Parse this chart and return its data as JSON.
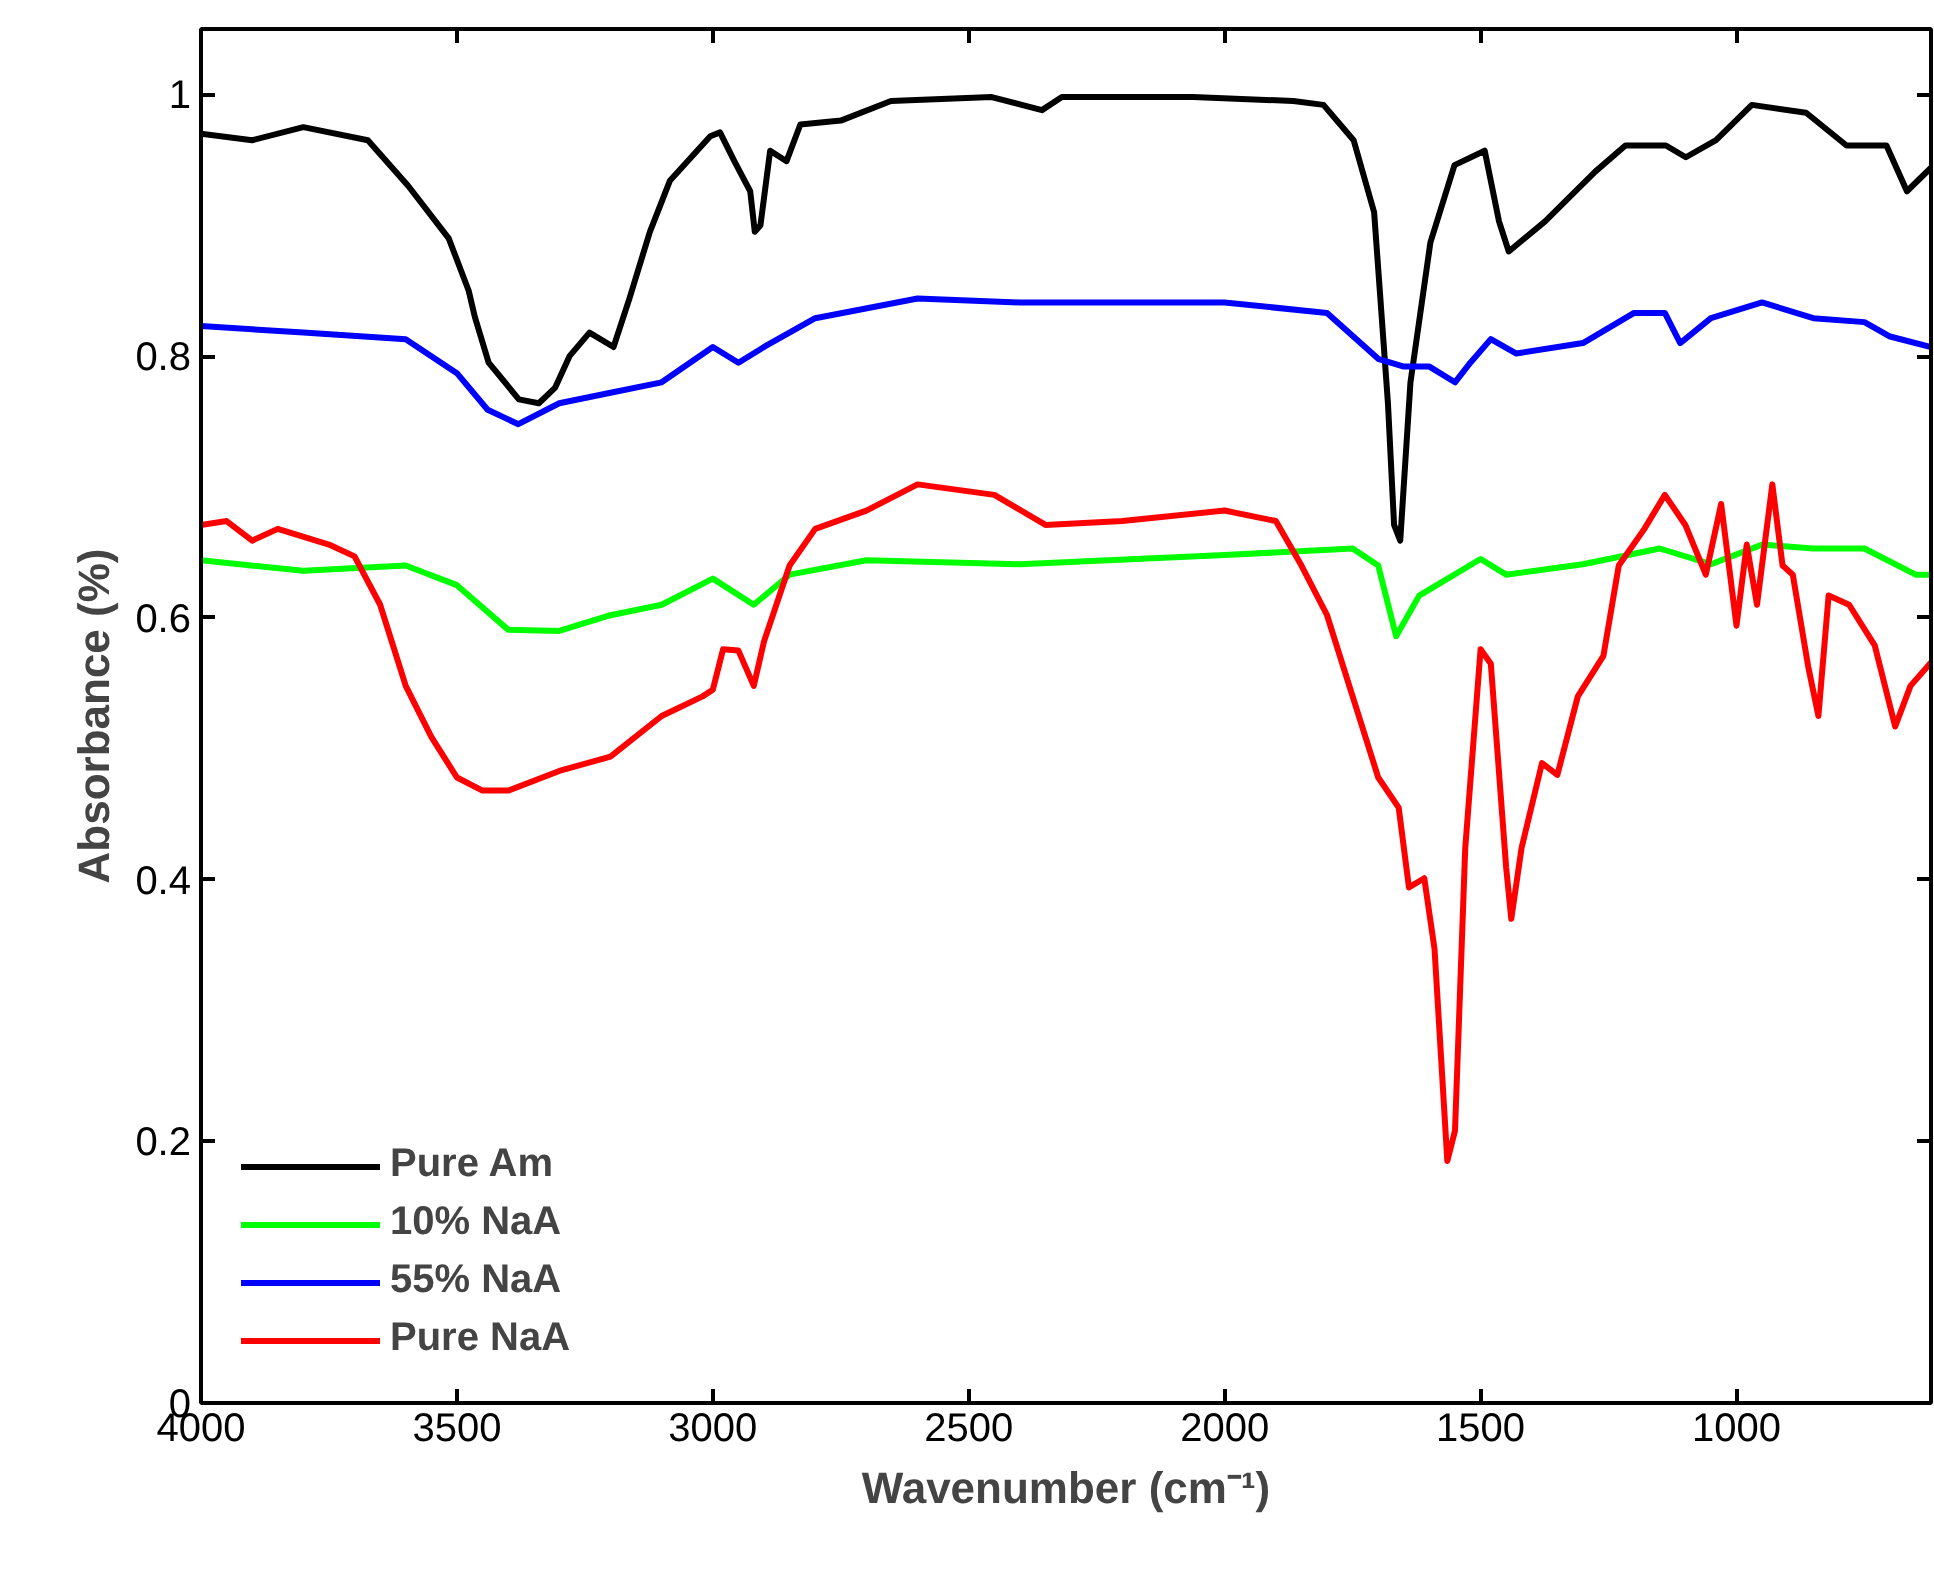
{
  "chart_data": {
    "type": "line",
    "xlabel": "Wavenumber (cm⁻¹)",
    "ylabel": "Absorbance (%)",
    "xlim": [
      4000,
      620
    ],
    "ylim": [
      0,
      1.05
    ],
    "xticks": [
      4000,
      3500,
      3000,
      2500,
      2000,
      1500,
      1000
    ],
    "yticks": [
      0,
      0.2,
      0.4,
      0.6,
      0.8,
      1
    ],
    "grid": false,
    "legend": "bottom left",
    "line_style": "solid",
    "marker": "none",
    "series": [
      {
        "name": "Pure Am",
        "color": "#000000",
        "x": [
          4000,
          3900,
          3800,
          3674,
          3595,
          3516,
          3477,
          3465,
          3438,
          3379,
          3340,
          3308,
          3280,
          3241,
          3194,
          3163,
          3123,
          3084,
          3005,
          2986,
          2958,
          2927,
          2918,
          2907,
          2888,
          2856,
          2829,
          2750,
          2652,
          2455,
          2357,
          2318,
          2062,
          1866,
          1807,
          1748,
          1708,
          1681,
          1669,
          1657,
          1637,
          1598,
          1551,
          1492,
          1464,
          1445,
          1374,
          1276,
          1217,
          1138,
          1099,
          1040,
          970,
          864,
          785,
          707,
          667,
          620
        ],
        "values": [
          0.97,
          0.965,
          0.975,
          0.965,
          0.93,
          0.89,
          0.85,
          0.83,
          0.795,
          0.767,
          0.764,
          0.776,
          0.8,
          0.818,
          0.807,
          0.844,
          0.895,
          0.934,
          0.968,
          0.971,
          0.949,
          0.926,
          0.895,
          0.9,
          0.957,
          0.949,
          0.977,
          0.98,
          0.995,
          0.998,
          0.988,
          0.998,
          0.998,
          0.995,
          0.992,
          0.965,
          0.91,
          0.764,
          0.671,
          0.659,
          0.78,
          0.887,
          0.946,
          0.957,
          0.903,
          0.88,
          0.903,
          0.941,
          0.961,
          0.961,
          0.952,
          0.965,
          0.992,
          0.986,
          0.961,
          0.961,
          0.926,
          0.944
        ]
      },
      {
        "name": "10% NaA",
        "color": "#00ff00",
        "x": [
          4000,
          3800,
          3600,
          3500,
          3400,
          3300,
          3200,
          3100,
          3000,
          2920,
          2850,
          2700,
          2400,
          2000,
          1750,
          1700,
          1665,
          1620,
          1500,
          1450,
          1300,
          1150,
          1050,
          950,
          850,
          750,
          650,
          620
        ],
        "values": [
          0.644,
          0.636,
          0.64,
          0.625,
          0.591,
          0.59,
          0.602,
          0.61,
          0.63,
          0.61,
          0.633,
          0.644,
          0.641,
          0.648,
          0.653,
          0.64,
          0.586,
          0.617,
          0.645,
          0.633,
          0.641,
          0.653,
          0.641,
          0.656,
          0.653,
          0.653,
          0.633,
          0.633
        ]
      },
      {
        "name": "55% NaA",
        "color": "#0000ff",
        "x": [
          4000,
          3800,
          3600,
          3500,
          3440,
          3380,
          3300,
          3200,
          3100,
          3000,
          2950,
          2900,
          2800,
          2600,
          2400,
          2000,
          1800,
          1700,
          1650,
          1600,
          1550,
          1520,
          1480,
          1430,
          1300,
          1200,
          1140,
          1110,
          1050,
          950,
          850,
          750,
          700,
          620
        ],
        "values": [
          0.823,
          0.818,
          0.813,
          0.787,
          0.759,
          0.748,
          0.764,
          0.772,
          0.78,
          0.807,
          0.795,
          0.807,
          0.829,
          0.844,
          0.841,
          0.841,
          0.833,
          0.798,
          0.792,
          0.792,
          0.78,
          0.795,
          0.813,
          0.802,
          0.81,
          0.833,
          0.833,
          0.81,
          0.829,
          0.841,
          0.829,
          0.826,
          0.815,
          0.807
        ]
      },
      {
        "name": "Pure NaA",
        "color": "#ff0000",
        "x": [
          4000,
          3950,
          3900,
          3850,
          3750,
          3700,
          3650,
          3600,
          3550,
          3500,
          3450,
          3400,
          3300,
          3200,
          3100,
          3020,
          3000,
          2980,
          2950,
          2920,
          2900,
          2850,
          2800,
          2700,
          2600,
          2450,
          2350,
          2200,
          2000,
          1900,
          1850,
          1800,
          1750,
          1700,
          1660,
          1640,
          1610,
          1590,
          1565,
          1550,
          1530,
          1500,
          1480,
          1450,
          1440,
          1420,
          1380,
          1350,
          1310,
          1260,
          1230,
          1180,
          1140,
          1100,
          1060,
          1030,
          1000,
          980,
          960,
          930,
          910,
          890,
          860,
          840,
          820,
          780,
          730,
          690,
          660,
          620
        ],
        "values": [
          0.671,
          0.674,
          0.659,
          0.668,
          0.656,
          0.647,
          0.61,
          0.548,
          0.509,
          0.478,
          0.468,
          0.468,
          0.483,
          0.494,
          0.525,
          0.54,
          0.545,
          0.576,
          0.575,
          0.548,
          0.582,
          0.64,
          0.668,
          0.682,
          0.702,
          0.694,
          0.671,
          0.674,
          0.682,
          0.674,
          0.64,
          0.602,
          0.54,
          0.478,
          0.455,
          0.394,
          0.401,
          0.347,
          0.185,
          0.208,
          0.424,
          0.576,
          0.565,
          0.409,
          0.37,
          0.424,
          0.489,
          0.48,
          0.54,
          0.571,
          0.64,
          0.668,
          0.694,
          0.671,
          0.633,
          0.687,
          0.594,
          0.656,
          0.61,
          0.702,
          0.64,
          0.633,
          0.563,
          0.525,
          0.617,
          0.61,
          0.579,
          0.517,
          0.548,
          0.566
        ]
      }
    ]
  }
}
